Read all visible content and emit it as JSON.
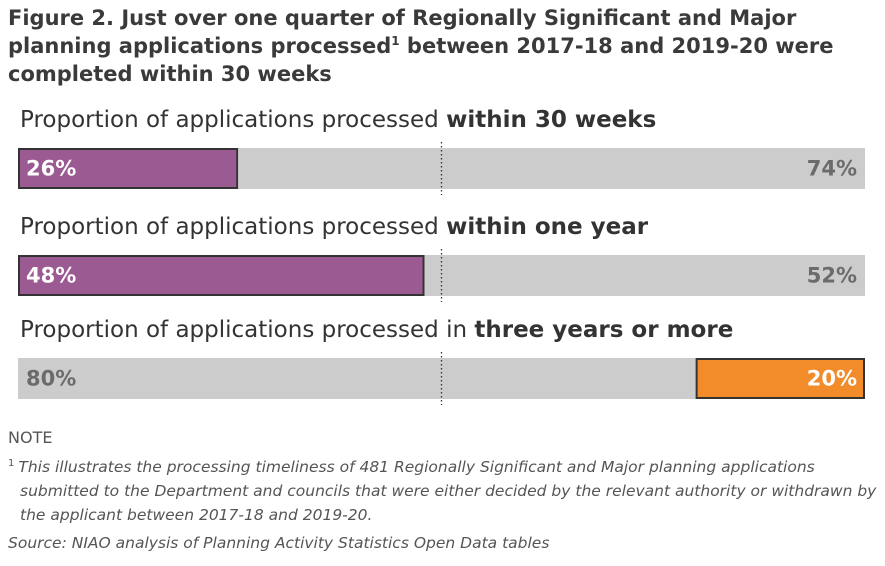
{
  "title": "Figure 2. Just over one quarter of Regionally Significant and Major planning applications processed",
  "title_marker": "1",
  "title_rest": "between 2017-18 and 2019-20 were completed within 30 weeks",
  "chart_data": [
    {
      "type": "bar",
      "title": "Proportion of applications processed",
      "title_emphasis": "within 30 weeks",
      "xlim": [
        0,
        100
      ],
      "reference_line": 50,
      "series": [
        {
          "color": "#9b5a91",
          "values": [
            26
          ],
          "value_labels": [
            "26%"
          ],
          "highlight": true
        },
        {
          "color": "#cccccc",
          "values": [
            74
          ],
          "value_labels": [
            "74%"
          ],
          "highlight": false
        }
      ]
    },
    {
      "type": "bar",
      "title": "Proportion of applications processed",
      "title_emphasis": "within one year",
      "xlim": [
        0,
        100
      ],
      "reference_line": 50,
      "series": [
        {
          "color": "#9b5a91",
          "values": [
            48
          ],
          "value_labels": [
            "48%"
          ],
          "highlight": true
        },
        {
          "color": "#cccccc",
          "values": [
            52
          ],
          "value_labels": [
            "52%"
          ],
          "highlight": false
        }
      ]
    },
    {
      "type": "bar",
      "title": "Proportion of applications processed in",
      "title_emphasis": "three years or more",
      "xlim": [
        0,
        100
      ],
      "reference_line": 50,
      "series": [
        {
          "color": "#cccccc",
          "values": [
            80
          ],
          "value_labels": [
            "80%"
          ],
          "highlight": false
        },
        {
          "color": "#f28c2b",
          "values": [
            20
          ],
          "value_labels": [
            "20%"
          ],
          "highlight": true
        }
      ]
    }
  ],
  "note": {
    "label": "NOTE",
    "marker": "1",
    "text": "This illustrates the processing timeliness of 481 Regionally Significant and Major planning applications submitted to the Department and councils that were either decided by the relevant authority or withdrawn by the applicant between 2017-18 and 2019-20."
  },
  "source": "Source: NIAO analysis of Planning Activity Statistics Open Data tables"
}
